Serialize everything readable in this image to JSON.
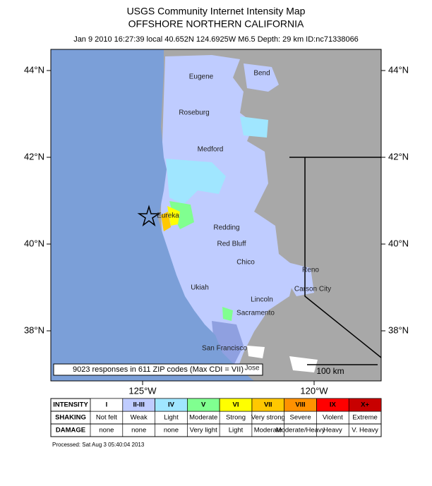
{
  "title": "USGS Community Internet Intensity Map",
  "subtitle": "OFFSHORE NORTHERN CALIFORNIA",
  "event_info": "Jan 9 2010 16:27:39 local 40.652N 124.6925W M6.5 Depth: 29 km ID:nc71338066",
  "map": {
    "lat_labels": [
      "44°N",
      "42°N",
      "40°N",
      "38°N"
    ],
    "lon_labels": [
      "125°W",
      "120°W"
    ],
    "cities": [
      "Eugene",
      "Bend",
      "Roseburg",
      "Medford",
      "Eureka",
      "Redding",
      "Red Bluff",
      "Chico",
      "Reno",
      "Ukiah",
      "Carson City",
      "Lincoln",
      "Sacramento",
      "San Francisco",
      "Jose"
    ],
    "scale_label": "100 km",
    "responses": "9023 responses in 611 ZIP codes (Max CDI = VII)"
  },
  "legend": {
    "row_headers": [
      "INTENSITY",
      "SHAKING",
      "DAMAGE"
    ],
    "columns": [
      {
        "intensity": "I",
        "shaking": "Not felt",
        "damage": "none",
        "color": "#ffffff"
      },
      {
        "intensity": "II-III",
        "shaking": "Weak",
        "damage": "none",
        "color": "#bfccff"
      },
      {
        "intensity": "IV",
        "shaking": "Light",
        "damage": "none",
        "color": "#a0e6ff"
      },
      {
        "intensity": "V",
        "shaking": "Moderate",
        "damage": "Very light",
        "color": "#80ff90"
      },
      {
        "intensity": "VI",
        "shaking": "Strong",
        "damage": "Light",
        "color": "#ffff00"
      },
      {
        "intensity": "VII",
        "shaking": "Very strong",
        "damage": "Moderate",
        "color": "#ffc800"
      },
      {
        "intensity": "VIII",
        "shaking": "Severe",
        "damage": "Moderate/Heavy",
        "color": "#ff9100"
      },
      {
        "intensity": "IX",
        "shaking": "Violent",
        "damage": "Heavy",
        "color": "#ff0000"
      },
      {
        "intensity": "X+",
        "shaking": "Extreme",
        "damage": "V. Heavy",
        "color": "#c80000"
      }
    ]
  },
  "footer": "Processed: Sat Aug  3 05:40:04 2013"
}
